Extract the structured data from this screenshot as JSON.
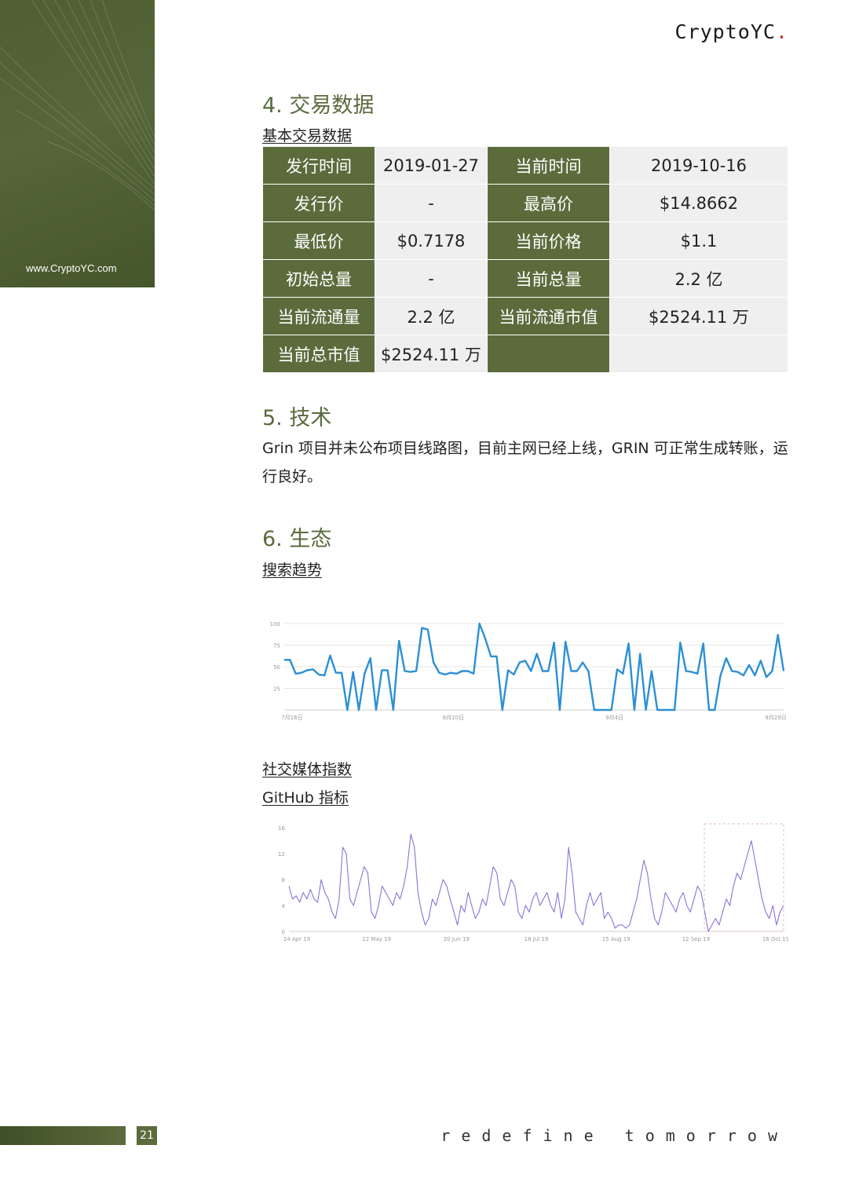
{
  "brand": {
    "logo_text": "CryptoYC",
    "logo_dot": ".",
    "url": "www.CryptoYC.com",
    "accent": "#5c6b3c"
  },
  "section4": {
    "title": "4. 交易数据",
    "subhead": "基本交易数据",
    "rows": [
      [
        {
          "k": "发行时间",
          "v": "2019-01-27"
        },
        {
          "k": "当前时间",
          "v": "2019-10-16"
        }
      ],
      [
        {
          "k": "发行价",
          "v": "-"
        },
        {
          "k": "最高价",
          "v": "$14.8662"
        }
      ],
      [
        {
          "k": "最低价",
          "v": "$0.7178"
        },
        {
          "k": "当前价格",
          "v": "$1.1"
        }
      ],
      [
        {
          "k": "初始总量",
          "v": "-"
        },
        {
          "k": "当前总量",
          "v": "2.2 亿"
        }
      ],
      [
        {
          "k": "当前流通量",
          "v": "2.2 亿"
        },
        {
          "k": "当前流通市值",
          "v": "$2524.11 万"
        }
      ],
      [
        {
          "k": "当前总市值",
          "v": "$2524.11 万"
        },
        {
          "k": "",
          "v": ""
        }
      ]
    ]
  },
  "section5": {
    "title": "5. 技术",
    "paragraph": "Grin 项目并未公布项目线路图，目前主网已经上线，GRIN 可正常生成转账，运行良好。"
  },
  "section6": {
    "title": "6. 生态",
    "search_subhead": "搜索趋势",
    "social_subhead": "社交媒体指数",
    "github_subhead": "GitHub 指标"
  },
  "chart_data": [
    {
      "type": "line",
      "title": "搜索趋势",
      "color": "#2b8fd6",
      "ylim": [
        0,
        100
      ],
      "yticks": [
        "100",
        "75",
        "50",
        "25"
      ],
      "xticks": [
        "7月16日",
        "8月10日",
        "9月4日",
        "9月29日"
      ],
      "values": [
        58,
        58,
        42,
        43,
        46,
        47,
        41,
        40,
        63,
        43,
        43,
        0,
        44,
        0,
        42,
        60,
        0,
        46,
        46,
        0,
        80,
        45,
        44,
        45,
        95,
        93,
        55,
        43,
        41,
        43,
        42,
        45,
        45,
        42,
        100,
        83,
        62,
        62,
        0,
        46,
        41,
        55,
        57,
        45,
        65,
        45,
        45,
        78,
        0,
        79,
        45,
        45,
        55,
        45,
        0,
        0,
        0,
        0,
        47,
        42,
        77,
        0,
        65,
        0,
        45,
        0,
        0,
        0,
        0,
        78,
        45,
        44,
        42,
        77,
        0,
        0,
        40,
        60,
        45,
        44,
        40,
        52,
        40,
        57,
        38,
        45,
        87,
        45
      ]
    },
    {
      "type": "line",
      "title": "GitHub 指标",
      "color": "#8a73d9",
      "ylim": [
        0,
        16
      ],
      "yticks": [
        "16",
        "12",
        "8",
        "4",
        "0"
      ],
      "xticks": [
        "24 Apr 19",
        "22 May 19",
        "20 Jun 19",
        "18 Jul 19",
        "15 Aug 19",
        "12 Sep 19",
        "16 Oct 19"
      ],
      "values": [
        7,
        5,
        5.5,
        4.5,
        6,
        5,
        6.5,
        5,
        4.5,
        8,
        6,
        5,
        3,
        2,
        5,
        13,
        12,
        5,
        4,
        6,
        8,
        10,
        9,
        3,
        2,
        4,
        7,
        6,
        5,
        4,
        6,
        5,
        7,
        10,
        15,
        13,
        6,
        3,
        1,
        2,
        5,
        4,
        6,
        8,
        7,
        5,
        3,
        1,
        4,
        3,
        6,
        4,
        2,
        3,
        5,
        4,
        7,
        10,
        9,
        5,
        4,
        6,
        8,
        7,
        3,
        2,
        4,
        3,
        5,
        6,
        4,
        5,
        6,
        4,
        3,
        6,
        2,
        5,
        13,
        9,
        3,
        2,
        1,
        4,
        6,
        4,
        5,
        6,
        2,
        3,
        2,
        0.5,
        1,
        1,
        0.5,
        1,
        3,
        5,
        8,
        11,
        9,
        5,
        2,
        1,
        3,
        6,
        5,
        4,
        3,
        5,
        6,
        4,
        3,
        5,
        7,
        6,
        3,
        0,
        1,
        2,
        1,
        3,
        5,
        4,
        7,
        9,
        8,
        10,
        12,
        14,
        11,
        8,
        5,
        3,
        2,
        4,
        1,
        3,
        4
      ]
    }
  ],
  "footer": {
    "page_number": "21",
    "tagline": "redefine tomorrow"
  }
}
